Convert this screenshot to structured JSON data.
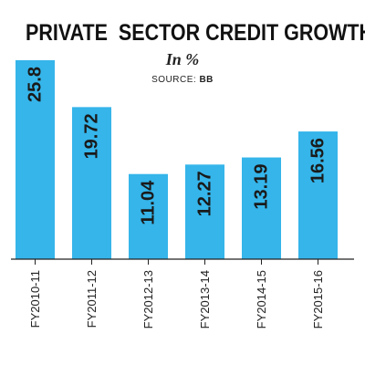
{
  "header": {
    "title": "PRIVATE  SECTOR CREDIT GROWTH",
    "subtitle": "In %",
    "source_label": "SOURCE: ",
    "source_value": "BB"
  },
  "colors": {
    "bar": "#35b5ea",
    "value_text": "#1a1a1a",
    "axis": "#222222"
  },
  "chart_data": {
    "type": "bar",
    "categories": [
      "FY2010-11",
      "FY2011-12",
      "FY2012-13",
      "FY2013-14",
      "FY2014-15",
      "FY2015-16"
    ],
    "values": [
      25.8,
      19.72,
      11.04,
      12.27,
      13.19,
      16.56
    ],
    "value_labels": [
      "25.8",
      "19.72",
      "11.04",
      "12.27",
      "13.19",
      "16.56"
    ],
    "title": "PRIVATE  SECTOR CREDIT GROWTH",
    "subtitle": "In %",
    "ylim": [
      0,
      25.8
    ],
    "grid": false,
    "legend": "none"
  }
}
